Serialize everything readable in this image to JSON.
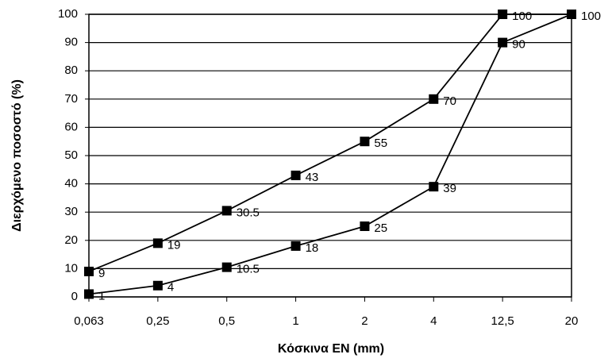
{
  "chart_data": {
    "type": "line",
    "xlabel": "Κόσκινα ΕΝ  (mm)",
    "ylabel": "Διερχόμενο ποσοστό (%)",
    "categories": [
      "0,063",
      "0,25",
      "0,5",
      "1",
      "2",
      "4",
      "12,5",
      "20"
    ],
    "series": [
      {
        "color": "#000000",
        "values": [
          9,
          19,
          30.5,
          43,
          55,
          70,
          100,
          100
        ],
        "value_labels": [
          "9",
          "19",
          "30.5",
          "43",
          "55",
          "70",
          "100",
          "100"
        ]
      },
      {
        "color": "#000000",
        "values": [
          1,
          4,
          10.5,
          18,
          25,
          39,
          90,
          100
        ],
        "value_labels": [
          "1",
          "4",
          "10.5",
          "18",
          "25",
          "39",
          "90",
          null
        ]
      }
    ],
    "ylim": [
      0,
      100
    ],
    "yticks": [
      0,
      10,
      20,
      30,
      40,
      50,
      60,
      70,
      80,
      90,
      100
    ],
    "grid": true
  }
}
